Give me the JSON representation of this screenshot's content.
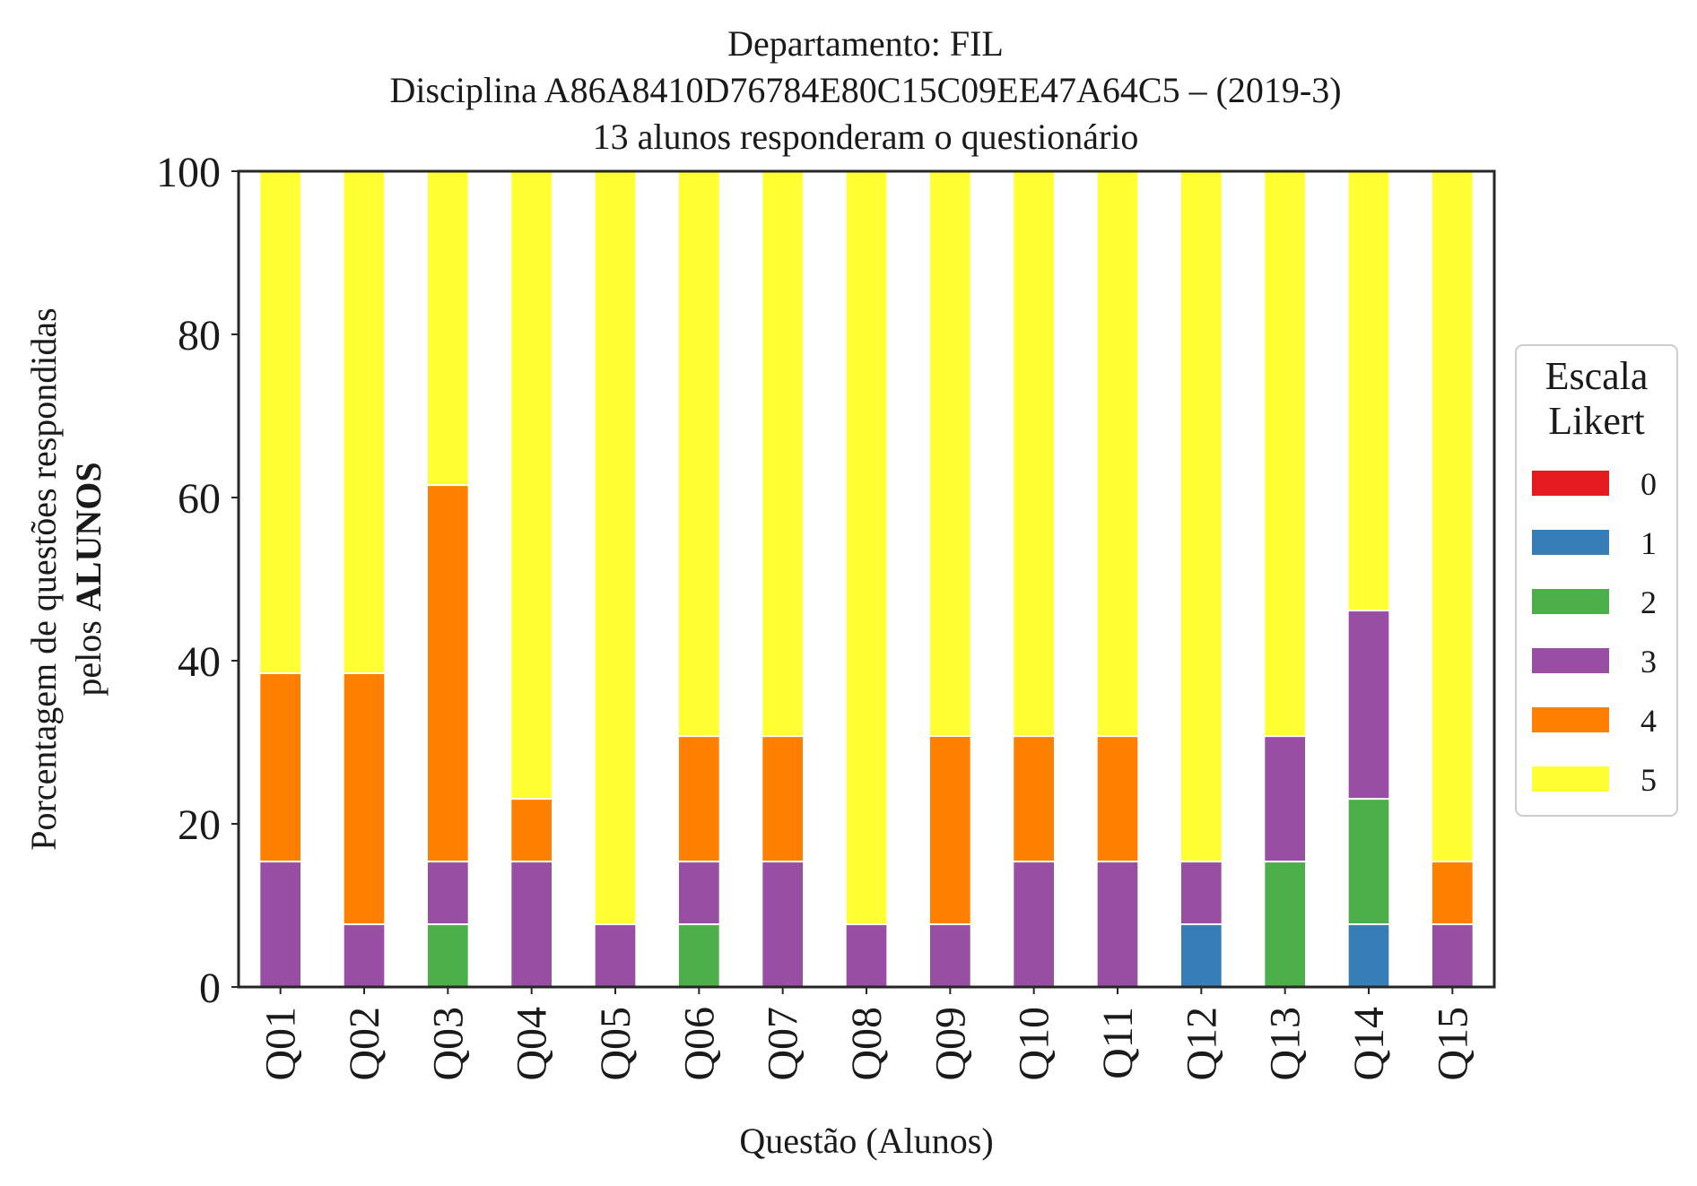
{
  "chart_data": {
    "type": "bar",
    "stacked": true,
    "title_lines": [
      "Departamento: FIL",
      "Disciplina A86A8410D76784E80C15C09EE47A64C5 – (2019-3)",
      "13 alunos responderam o questionário"
    ],
    "xlabel": "Questão (Alunos)",
    "ylabel_line1": "Porcentagem de questões respondidas",
    "ylabel_line2_prefix": "pelos ",
    "ylabel_line2_bold": "ALUNOS",
    "ylim": [
      0,
      100
    ],
    "yticks": [
      "0",
      "20",
      "40",
      "60",
      "80",
      "100"
    ],
    "grid": false,
    "legend_position": "right",
    "legend": {
      "title_line1": "Escala",
      "title_line2": "Likert"
    },
    "categories": [
      "Q01",
      "Q02",
      "Q03",
      "Q04",
      "Q05",
      "Q06",
      "Q07",
      "Q08",
      "Q09",
      "Q10",
      "Q11",
      "Q12",
      "Q13",
      "Q14",
      "Q15"
    ],
    "series": [
      {
        "name": "0",
        "color": "#e41a1c",
        "values": [
          0,
          0,
          0,
          0,
          0,
          0,
          0,
          0,
          0,
          0,
          0,
          0,
          0,
          0,
          0
        ]
      },
      {
        "name": "1",
        "color": "#377eb8",
        "values": [
          0,
          0,
          0,
          0,
          0,
          0,
          0,
          0,
          0,
          0,
          0,
          7.69,
          0,
          7.69,
          0
        ]
      },
      {
        "name": "2",
        "color": "#4daf4a",
        "values": [
          0,
          0,
          7.69,
          0,
          0,
          7.69,
          0,
          0,
          0,
          0,
          0,
          0,
          15.38,
          15.38,
          0
        ]
      },
      {
        "name": "3",
        "color": "#984ea3",
        "values": [
          15.38,
          7.69,
          7.69,
          15.38,
          7.69,
          7.69,
          15.38,
          7.69,
          7.69,
          15.38,
          15.38,
          7.69,
          15.38,
          23.08,
          7.69
        ]
      },
      {
        "name": "4",
        "color": "#ff7f00",
        "values": [
          23.08,
          30.77,
          46.15,
          7.69,
          0,
          15.38,
          15.38,
          0,
          23.08,
          15.38,
          15.38,
          0,
          0,
          0,
          7.69
        ]
      },
      {
        "name": "5",
        "color": "#ffff33",
        "values": [
          61.54,
          61.54,
          38.46,
          76.92,
          92.31,
          69.23,
          69.23,
          92.31,
          69.23,
          69.23,
          69.23,
          84.62,
          69.23,
          53.85,
          84.62
        ]
      }
    ]
  }
}
